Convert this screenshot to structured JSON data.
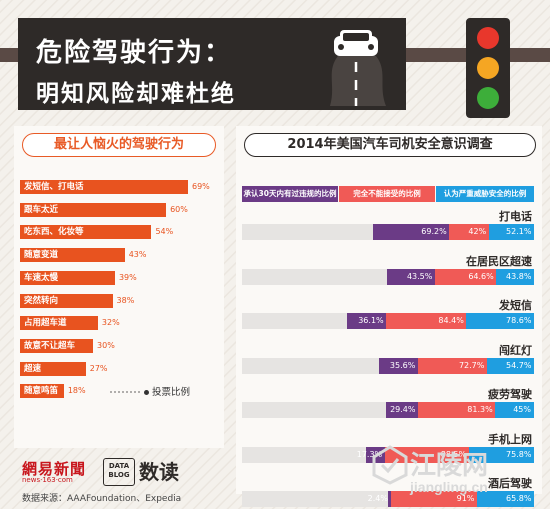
{
  "header": {
    "title_line1": "危险驾驶行为：",
    "title_line2": "明知风险却难杜绝"
  },
  "left_panel": {
    "title": "最让人恼火的驾驶行为",
    "note": "投票比例"
  },
  "right_panel": {
    "title": "2014年美国汽车司机安全意识调查",
    "legend": [
      "承认30天内有过违规的比例",
      "完全不能接受的比例",
      "认为严重威胁安全的比例"
    ]
  },
  "footer": {
    "netease": "網易新聞",
    "news_url": "news·163·com",
    "data_blog": "DATA BLOG",
    "dudu": "数读",
    "source": "数据来源：AAAFoundation、Expedia",
    "watermark_cn": "江陵网",
    "watermark_en": "jiangling.cn"
  },
  "colors": {
    "orange": "#e8531f",
    "purple": "#6b3b86",
    "red": "#f05a56",
    "blue": "#1f9ee0",
    "dark": "#2e2a28"
  },
  "chart_data": [
    {
      "type": "bar",
      "title": "最让人恼火的驾驶行为",
      "categories": [
        "发短信、打电话",
        "跟车太近",
        "吃东西、化妆等",
        "随意变道",
        "车速太慢",
        "突然转向",
        "占用超车道",
        "故意不让超车",
        "超速",
        "随意鸣笛"
      ],
      "values": [
        69,
        60,
        54,
        43,
        39,
        38,
        32,
        30,
        27,
        18
      ],
      "value_labels": [
        "69%",
        "60%",
        "54%",
        "43%",
        "39%",
        "38%",
        "32%",
        "30%",
        "27%",
        "18%"
      ],
      "unit": "%",
      "xlim": [
        0,
        69
      ]
    },
    {
      "type": "bar",
      "title": "2014年美国汽车司机安全意识调查",
      "categories": [
        "打电话",
        "在居民区超速",
        "发短信",
        "闯红灯",
        "疲劳驾驶",
        "手机上网",
        "酒后驾驶"
      ],
      "series": [
        {
          "name": "承认30天内有过违规的比例",
          "values": [
            69.2,
            43.5,
            36.1,
            35.6,
            29.4,
            17.3,
            2.4
          ],
          "labels": [
            "69.2%",
            "43.5%",
            "36.1%",
            "35.6%",
            "29.4%",
            "17.3%",
            "2.4%"
          ]
        },
        {
          "name": "完全不能接受的比例",
          "values": [
            42,
            64.6,
            84.4,
            72.7,
            81.3,
            88.5,
            91
          ],
          "labels": [
            "42%",
            "64.6%",
            "84.4%",
            "72.7%",
            "81.3%",
            "88.5%",
            "91%"
          ]
        },
        {
          "name": "认为严重威胁安全的比例",
          "values": [
            52.1,
            43.8,
            78.6,
            54.7,
            45,
            75.8,
            65.8
          ],
          "labels": [
            "52.1%",
            "43.8%",
            "78.6%",
            "54.7%",
            "45%",
            "75.8%",
            "65.8%"
          ]
        }
      ],
      "unit": "%",
      "xlim": [
        0,
        100
      ]
    }
  ]
}
